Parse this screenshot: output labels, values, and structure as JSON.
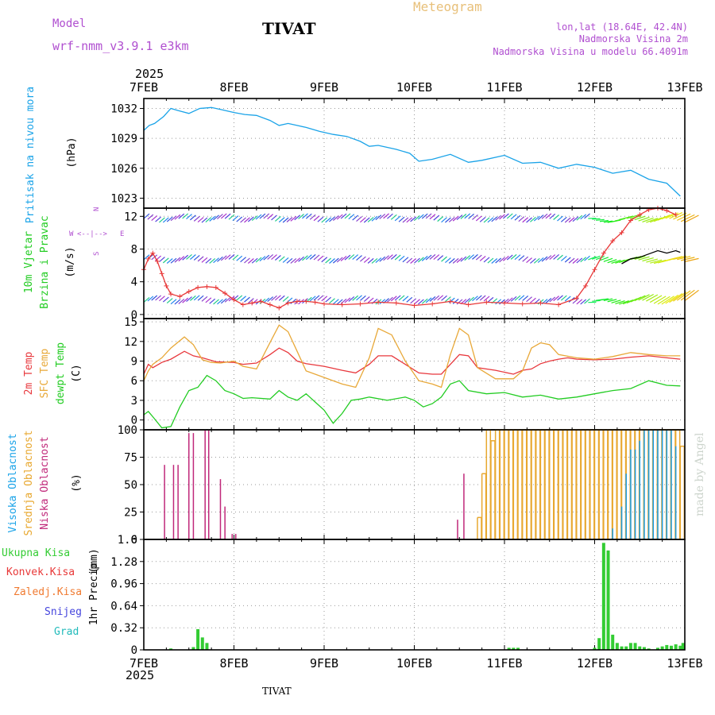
{
  "header": {
    "model_label": "Model",
    "model_name": "wrf-nmm_v3.9.1 e3km",
    "station": "TIVAT",
    "product": "Meteogram",
    "lonlat": "lon,lat (18.64E, 42.4N)",
    "elevation": "Nadmorska Visina 2m",
    "model_elevation": "Nadmorska Visina u modelu 66.4091m",
    "footer_station": "TIVAT",
    "made_by": "made by Angel"
  },
  "colors": {
    "pressure": "#1aa3e8",
    "t2m": "#e8383d",
    "sfc": "#e8a838",
    "dewpt": "#22cc22",
    "high_cloud": "#1a9ee8",
    "mid_cloud": "#e8a830",
    "low_cloud": "#c0287a",
    "total_precip": "#33cc33",
    "conv_precip": "#e83838",
    "frozen_precip": "#f07a30",
    "snow": "#4444dd",
    "hail": "#22bbbb",
    "meteogram_title": "#e8c07a",
    "model_label": "#b04fd0",
    "info": "#b04fd0"
  },
  "chart_data": {
    "type": "meteogram",
    "year": "2025",
    "x_ticks": [
      "7FEB",
      "8FEB",
      "9FEB",
      "10FEB",
      "11FEB",
      "12FEB",
      "13FEB"
    ],
    "panels": [
      {
        "id": "pressure",
        "type": "line",
        "label": "Pritisak na nivou mora",
        "unit": "(hPa)",
        "ylim": [
          1022,
          1033
        ],
        "yticks": [
          "1023",
          "1026",
          "1029",
          "1032"
        ],
        "series": [
          {
            "name": "Pritisak na nivou mora",
            "x": [
              0,
              0.06,
              0.12,
              0.22,
              0.3,
              0.38,
              0.5,
              0.62,
              0.75,
              0.85,
              1.0,
              1.12,
              1.25,
              1.4,
              1.5,
              1.6,
              1.7,
              1.8,
              1.95,
              2.1,
              2.25,
              2.4,
              2.5,
              2.6,
              2.8,
              2.95,
              3.05,
              3.2,
              3.4,
              3.6,
              3.75,
              4.0,
              4.2,
              4.4,
              4.6,
              4.8,
              5.0,
              5.2,
              5.4,
              5.6,
              5.8,
              5.95
            ],
            "values": [
              1029.8,
              1030.3,
              1030.5,
              1031.2,
              1032.0,
              1031.8,
              1031.5,
              1032.0,
              1032.1,
              1031.9,
              1031.6,
              1031.4,
              1031.3,
              1030.8,
              1030.3,
              1030.5,
              1030.3,
              1030.1,
              1029.7,
              1029.4,
              1029.2,
              1028.7,
              1028.2,
              1028.3,
              1027.9,
              1027.5,
              1026.7,
              1026.9,
              1027.4,
              1026.6,
              1026.8,
              1027.3,
              1026.5,
              1026.6,
              1026.0,
              1026.4,
              1026.1,
              1025.5,
              1025.8,
              1024.9,
              1024.5,
              1023.2
            ]
          }
        ]
      },
      {
        "id": "wind",
        "type": "line",
        "label_lines": [
          "10m Vjetar",
          "Brzina i Pravac"
        ],
        "unit": "(m/s)",
        "compass": {
          "n": "N",
          "s": "S",
          "e": "E",
          "w": "W",
          "arrow": "<--|-->"
        },
        "ylim": [
          -0.5,
          13
        ],
        "yticks": [
          "0",
          "4",
          "8",
          "12"
        ],
        "series": [
          {
            "name": "10m wind speed",
            "x": [
              0,
              0.05,
              0.1,
              0.15,
              0.2,
              0.25,
              0.3,
              0.4,
              0.5,
              0.6,
              0.7,
              0.8,
              0.9,
              1.0,
              1.1,
              1.2,
              1.3,
              1.4,
              1.5,
              1.6,
              1.7,
              1.8,
              1.9,
              2.0,
              2.2,
              2.4,
              2.6,
              2.8,
              3.0,
              3.2,
              3.4,
              3.6,
              3.8,
              4.0,
              4.2,
              4.4,
              4.6,
              4.8,
              4.9,
              5.0,
              5.1,
              5.2,
              5.3,
              5.4,
              5.5,
              5.6,
              5.7,
              5.8,
              5.9
            ],
            "values": [
              5.5,
              6.8,
              7.5,
              6.5,
              5.0,
              3.5,
              2.5,
              2.2,
              2.8,
              3.3,
              3.4,
              3.3,
              2.6,
              1.8,
              1.2,
              1.4,
              1.6,
              1.2,
              0.8,
              1.4,
              1.6,
              1.6,
              1.5,
              1.3,
              1.2,
              1.3,
              1.5,
              1.4,
              1.1,
              1.3,
              1.6,
              1.2,
              1.5,
              1.4,
              1.3,
              1.4,
              1.2,
              2.0,
              3.5,
              5.5,
              7.5,
              9.0,
              10.0,
              11.5,
              12.2,
              12.8,
              13.0,
              12.7,
              12.2
            ]
          },
          {
            "name": "10m wind speed (alt)",
            "x": [
              5.3,
              5.4,
              5.5,
              5.6,
              5.7,
              5.8,
              5.9,
              5.95
            ],
            "values": [
              6.2,
              6.8,
              7.0,
              7.4,
              7.8,
              7.5,
              7.8,
              7.6
            ]
          }
        ],
        "arrow_rows": [
          1.5,
          6.5,
          11.5
        ]
      },
      {
        "id": "temperature",
        "type": "line",
        "label_lines": [
          "2m Temp",
          "SFC Temp",
          "dewpt Temp"
        ],
        "unit": "(C)",
        "ylim": [
          -1.5,
          15.5
        ],
        "yticks": [
          "0",
          "3",
          "6",
          "9",
          "12",
          "15"
        ],
        "series": [
          {
            "name": "2m Temp",
            "x": [
              0,
              0.05,
              0.1,
              0.2,
              0.3,
              0.45,
              0.55,
              0.65,
              0.8,
              1.0,
              1.1,
              1.25,
              1.4,
              1.5,
              1.6,
              1.7,
              1.8,
              2.0,
              2.2,
              2.35,
              2.5,
              2.6,
              2.75,
              2.9,
              3.05,
              3.2,
              3.3,
              3.4,
              3.5,
              3.6,
              3.7,
              3.9,
              4.1,
              4.2,
              4.3,
              4.4,
              4.5,
              4.6,
              4.7,
              4.8,
              5.0,
              5.2,
              5.4,
              5.6,
              5.8,
              5.95
            ],
            "values": [
              7.0,
              8.5,
              8.0,
              8.8,
              9.3,
              10.5,
              9.8,
              9.5,
              8.9,
              8.8,
              8.5,
              8.7,
              10.0,
              11.0,
              10.3,
              9.0,
              8.6,
              8.2,
              7.6,
              7.2,
              8.5,
              9.8,
              9.8,
              8.5,
              7.2,
              7.0,
              7.0,
              8.5,
              10.0,
              9.8,
              8.0,
              7.6,
              7.0,
              7.6,
              7.8,
              8.6,
              9.0,
              9.3,
              9.5,
              9.3,
              9.2,
              9.3,
              9.6,
              9.8,
              9.5,
              9.3
            ]
          },
          {
            "name": "SFC Temp",
            "x": [
              0,
              0.05,
              0.1,
              0.2,
              0.3,
              0.45,
              0.55,
              0.65,
              0.75,
              0.85,
              1.0,
              1.1,
              1.25,
              1.35,
              1.5,
              1.6,
              1.7,
              1.8,
              2.0,
              2.2,
              2.35,
              2.5,
              2.6,
              2.75,
              2.9,
              3.05,
              3.2,
              3.3,
              3.4,
              3.5,
              3.6,
              3.7,
              3.9,
              4.1,
              4.2,
              4.3,
              4.4,
              4.5,
              4.6,
              4.8,
              5.0,
              5.2,
              5.4,
              5.6,
              5.8,
              5.95
            ],
            "values": [
              6.0,
              7.5,
              8.5,
              9.5,
              11.0,
              12.7,
              11.5,
              9.2,
              8.8,
              8.7,
              9.0,
              8.2,
              7.8,
              10.5,
              14.5,
              13.5,
              10.5,
              7.5,
              6.5,
              5.5,
              5.0,
              9.5,
              14.0,
              13.0,
              9.0,
              6.0,
              5.5,
              5.0,
              10.0,
              14.0,
              13.0,
              8.0,
              6.3,
              6.3,
              7.5,
              11.0,
              11.8,
              11.5,
              10.0,
              9.5,
              9.3,
              9.7,
              10.3,
              10.0,
              9.8,
              9.8
            ]
          },
          {
            "name": "dewpt Temp",
            "x": [
              0,
              0.05,
              0.1,
              0.2,
              0.3,
              0.4,
              0.5,
              0.6,
              0.7,
              0.8,
              0.9,
              1.0,
              1.1,
              1.2,
              1.4,
              1.5,
              1.6,
              1.7,
              1.8,
              2.0,
              2.1,
              2.2,
              2.3,
              2.4,
              2.5,
              2.7,
              2.9,
              3.0,
              3.1,
              3.2,
              3.3,
              3.4,
              3.5,
              3.6,
              3.8,
              4.0,
              4.2,
              4.4,
              4.6,
              4.8,
              5.0,
              5.2,
              5.4,
              5.6,
              5.8,
              5.95
            ],
            "values": [
              0.8,
              1.3,
              0.5,
              -1.2,
              -1.0,
              2.0,
              4.5,
              5.0,
              6.8,
              6.0,
              4.5,
              4.0,
              3.3,
              3.4,
              3.2,
              4.5,
              3.5,
              3.0,
              4.0,
              1.5,
              -0.5,
              1.0,
              3.0,
              3.2,
              3.5,
              3.0,
              3.5,
              3.0,
              2.0,
              2.5,
              3.5,
              5.5,
              6.0,
              4.5,
              4.0,
              4.2,
              3.5,
              3.8,
              3.2,
              3.5,
              4.0,
              4.5,
              4.8,
              6.0,
              5.3,
              5.2
            ]
          }
        ]
      },
      {
        "id": "clouds",
        "type": "bar",
        "label_lines": [
          "Visoka Oblacnost",
          "Srednja Oblacnost",
          "Niska Oblacnost"
        ],
        "unit": "(%)",
        "ylim": [
          0,
          100
        ],
        "yticks": [
          "0",
          "25",
          "50",
          "75",
          "100"
        ],
        "series": [
          {
            "name": "Niska Oblacnost",
            "x": [
              0.23,
              0.33,
              0.38,
              0.5,
              0.55,
              0.68,
              0.72,
              0.85,
              0.9,
              0.98,
              1.02,
              3.48,
              3.55
            ],
            "values": [
              68,
              68,
              68,
              97,
              97,
              100,
              100,
              55,
              30,
              5,
              5,
              18,
              60
            ]
          },
          {
            "name": "Srednja Oblacnost",
            "x": [
              3.7,
              3.75,
              3.8,
              3.85,
              3.9,
              3.95,
              4.0,
              4.05,
              4.1,
              4.15,
              4.2,
              4.25,
              4.3,
              4.35,
              4.4,
              4.45,
              4.5,
              4.55,
              4.6,
              4.65,
              4.7,
              4.75,
              4.8,
              4.85,
              4.9,
              4.95,
              5.0,
              5.05,
              5.1,
              5.15,
              5.2,
              5.25,
              5.3,
              5.35,
              5.4,
              5.45,
              5.5,
              5.55,
              5.6,
              5.65,
              5.7,
              5.75,
              5.8,
              5.85,
              5.9,
              5.95
            ],
            "values": [
              20,
              60,
              100,
              90,
              100,
              100,
              100,
              100,
              100,
              100,
              100,
              100,
              100,
              100,
              100,
              100,
              100,
              100,
              100,
              100,
              100,
              100,
              100,
              100,
              100,
              100,
              100,
              100,
              100,
              100,
              100,
              100,
              100,
              100,
              100,
              100,
              100,
              100,
              100,
              100,
              100,
              100,
              100,
              100,
              100,
              85
            ]
          },
          {
            "name": "Visoka Oblacnost",
            "x": [
              5.2,
              5.3,
              5.35,
              5.4,
              5.45,
              5.5,
              5.55,
              5.6,
              5.65,
              5.7,
              5.75,
              5.8,
              5.85,
              5.9
            ],
            "values": [
              10,
              30,
              60,
              82,
              82,
              90,
              100,
              100,
              100,
              100,
              100,
              100,
              100,
              85
            ]
          }
        ]
      },
      {
        "id": "precip",
        "type": "bar",
        "label": "1hr Precip",
        "unit": "(mm)",
        "legend": [
          "Ukupna Kisa",
          "Konvek.Kisa",
          "Zaledj.Kisa",
          "Snijeg",
          "Grad"
        ],
        "ylim": [
          0,
          1.6
        ],
        "yticks": [
          "0",
          "0.32",
          "0.64",
          "0.96",
          "1.28",
          "1.6"
        ],
        "series": [
          {
            "name": "Ukupna Kisa",
            "x": [
              0.3,
              0.55,
              0.6,
              0.65,
              0.7,
              4.05,
              4.1,
              4.15,
              5.6,
              5.75,
              5.9,
              5.95,
              5.98,
              5.7,
              5.0,
              5.05,
              5.1,
              5.15,
              5.2,
              5.25,
              5.3,
              5.35,
              5.4,
              5.45,
              5.5,
              5.55,
              5.8,
              5.85
            ],
            "values": [
              0.02,
              0.04,
              0.3,
              0.18,
              0.1,
              0.03,
              0.03,
              0.03,
              0.02,
              0.05,
              0.08,
              0.06,
              0.1,
              0.03,
              0.03,
              0.17,
              1.55,
              1.44,
              0.22,
              0.1,
              0.05,
              0.05,
              0.1,
              0.1,
              0.05,
              0.04,
              0.07,
              0.06
            ]
          }
        ]
      }
    ]
  }
}
